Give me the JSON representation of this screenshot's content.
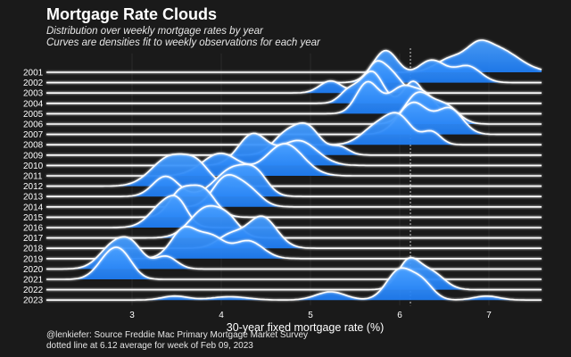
{
  "title": "Mortgage Rate Clouds",
  "subtitle_line1": "Distribution over weekly mortgage rates by year",
  "subtitle_line2": "Curves are densities fit to weekly observations for each year",
  "caption_line1": "@lenkiefer: Source Freddie Mac Primary Mortgage Market Survey",
  "caption_line2": "dotted line at 6.12 average for week of Feb 09, 2023",
  "colors": {
    "background": "#1a1a1a",
    "fill": "#1e7cf2",
    "fill_light": "#4aa0ff",
    "ridge_line": "#ffffff",
    "reference_line": "#cfcfcf"
  },
  "chart_data": {
    "type": "ridgeline",
    "xlabel": "30-year fixed mortgage rate (%)",
    "ylabel": "",
    "xlim": [
      2.2,
      7.6
    ],
    "x_ticks": [
      3,
      4,
      5,
      6,
      7
    ],
    "reference_line": {
      "x": 6.12,
      "style": "dotted"
    },
    "grid": true,
    "series": [
      {
        "name": "2001",
        "peaks": [
          [
            6.6,
            0.16,
            0.5
          ],
          [
            7.1,
            0.24,
            1.0
          ],
          [
            6.9,
            0.12,
            0.5
          ]
        ]
      },
      {
        "name": "2002",
        "peaks": [
          [
            5.9,
            0.14,
            1.0
          ],
          [
            6.4,
            0.16,
            0.7
          ],
          [
            6.8,
            0.14,
            0.5
          ]
        ]
      },
      {
        "name": "2003",
        "peaks": [
          [
            5.3,
            0.12,
            0.4
          ],
          [
            5.8,
            0.12,
            1.0
          ],
          [
            6.0,
            0.1,
            0.4
          ]
        ]
      },
      {
        "name": "2004",
        "peaks": [
          [
            5.5,
            0.1,
            0.4
          ],
          [
            5.75,
            0.12,
            1.0
          ],
          [
            6.2,
            0.1,
            0.7
          ]
        ]
      },
      {
        "name": "2005",
        "peaks": [
          [
            5.7,
            0.12,
            1.0
          ],
          [
            6.1,
            0.16,
            0.9
          ],
          [
            6.35,
            0.1,
            0.4
          ]
        ]
      },
      {
        "name": "2006",
        "peaks": [
          [
            6.25,
            0.14,
            1.0
          ],
          [
            6.55,
            0.14,
            0.6
          ]
        ]
      },
      {
        "name": "2007",
        "peaks": [
          [
            6.2,
            0.16,
            1.0
          ],
          [
            6.6,
            0.14,
            0.8
          ]
        ]
      },
      {
        "name": "2008",
        "peaks": [
          [
            5.8,
            0.16,
            0.7
          ],
          [
            6.05,
            0.14,
            1.0
          ],
          [
            6.4,
            0.1,
            0.5
          ]
        ]
      },
      {
        "name": "2009",
        "peaks": [
          [
            4.8,
            0.14,
            0.7
          ],
          [
            5.05,
            0.14,
            1.0
          ],
          [
            5.4,
            0.1,
            0.3
          ]
        ]
      },
      {
        "name": "2010",
        "peaks": [
          [
            4.45,
            0.16,
            1.0
          ],
          [
            4.95,
            0.2,
            0.8
          ]
        ]
      },
      {
        "name": "2011",
        "peaks": [
          [
            4.1,
            0.2,
            0.7
          ],
          [
            4.8,
            0.2,
            1.0
          ]
        ]
      },
      {
        "name": "2012",
        "peaks": [
          [
            3.55,
            0.2,
            1.0
          ],
          [
            3.85,
            0.14,
            0.6
          ]
        ]
      },
      {
        "name": "2013",
        "peaks": [
          [
            3.5,
            0.14,
            0.7
          ],
          [
            4.25,
            0.2,
            1.0
          ],
          [
            4.5,
            0.12,
            0.5
          ]
        ]
      },
      {
        "name": "2014",
        "peaks": [
          [
            4.15,
            0.14,
            1.0
          ],
          [
            4.4,
            0.14,
            0.6
          ]
        ]
      },
      {
        "name": "2015",
        "peaks": [
          [
            3.65,
            0.12,
            0.8
          ],
          [
            3.9,
            0.14,
            1.0
          ]
        ]
      },
      {
        "name": "2016",
        "peaks": [
          [
            3.5,
            0.16,
            1.0
          ],
          [
            3.65,
            0.1,
            0.5
          ]
        ]
      },
      {
        "name": "2017",
        "peaks": [
          [
            3.95,
            0.18,
            1.0
          ],
          [
            4.2,
            0.12,
            0.4
          ]
        ]
      },
      {
        "name": "2018",
        "peaks": [
          [
            4.55,
            0.16,
            1.0
          ],
          [
            4.2,
            0.14,
            0.4
          ]
        ]
      },
      {
        "name": "2019",
        "peaks": [
          [
            3.7,
            0.14,
            1.0
          ],
          [
            4.0,
            0.14,
            0.7
          ],
          [
            4.4,
            0.16,
            0.6
          ]
        ]
      },
      {
        "name": "2020",
        "peaks": [
          [
            2.95,
            0.16,
            0.8
          ],
          [
            3.15,
            0.12,
            0.5
          ],
          [
            3.5,
            0.12,
            0.4
          ]
        ]
      },
      {
        "name": "2021",
        "peaks": [
          [
            2.9,
            0.14,
            1.0
          ],
          [
            3.05,
            0.12,
            0.6
          ]
        ]
      },
      {
        "name": "2022",
        "peaks": [
          [
            6.15,
            0.12,
            1.0
          ],
          [
            6.4,
            0.14,
            0.6
          ]
        ]
      },
      {
        "name": "2023",
        "peaks": [
          [
            3.6,
            0.14,
            0.12
          ],
          [
            4.2,
            0.2,
            0.1
          ],
          [
            5.3,
            0.16,
            0.25
          ],
          [
            6.05,
            0.14,
            0.9
          ],
          [
            6.3,
            0.12,
            0.5
          ],
          [
            7.0,
            0.14,
            0.12
          ]
        ]
      }
    ]
  }
}
